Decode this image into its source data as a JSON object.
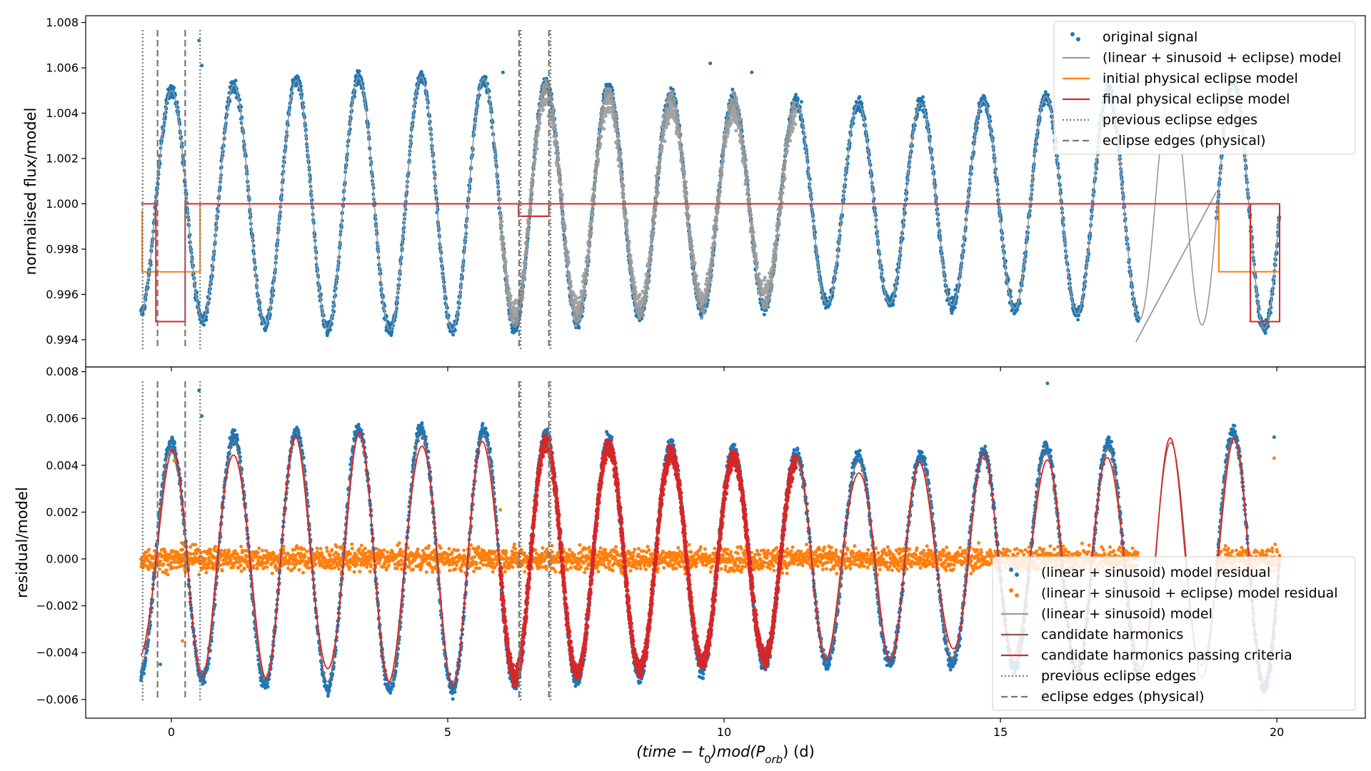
{
  "chart_data": [
    {
      "type": "line",
      "panel": "top",
      "title": "",
      "xlabel": "(time − t0)mod(Porb) (d)",
      "xlabel_parts": {
        "main": "(time − t",
        "sub0": "0",
        "mid": ")mod(P",
        "sub1": "orb",
        "end": ") (d)"
      },
      "ylabel": "normalised flux/model",
      "xlim": [
        -1.55,
        21.6
      ],
      "ylim": [
        0.9928,
        1.0083
      ],
      "xticks": [
        0,
        5,
        10,
        15,
        20
      ],
      "xtick_labels": [
        "0",
        "5",
        "10",
        "15",
        "20"
      ],
      "yticks": [
        0.994,
        0.996,
        0.998,
        1.0,
        1.002,
        1.004,
        1.006,
        1.008
      ],
      "ytick_labels": [
        "0.994",
        "0.996",
        "0.998",
        "1.000",
        "1.002",
        "1.004",
        "1.006",
        "1.008"
      ],
      "legend_position": "top-right",
      "series": [
        {
          "name": "original signal",
          "kind": "scatter",
          "color": "#1f77b4",
          "baseline": 1.0,
          "amplitude": 0.0052
        },
        {
          "name": "(linear + sinusoid + eclipse) model",
          "kind": "line",
          "color": "#999999",
          "x_range": [
            5.95,
            11.3
          ]
        },
        {
          "name": "initial physical eclipse model",
          "kind": "step",
          "color": "#ff7f0e",
          "x": [
            -0.53,
            -0.53,
            0.52,
            0.52,
            20.05,
            20.05
          ],
          "y": [
            0.9997,
            0.997,
            0.997,
            1.0,
            1.0,
            0.9975
          ]
        },
        {
          "name": "final physical eclipse model",
          "kind": "step",
          "color": "#d62728",
          "x": [
            -0.55,
            -0.28,
            -0.28,
            0.25,
            0.25,
            20.05
          ],
          "y": [
            1.0,
            1.0,
            0.9948,
            0.9948,
            1.0,
            1.0
          ]
        },
        {
          "name": "previous eclipse edges",
          "kind": "vline-dotted",
          "color": "#777777",
          "x": [
            -0.52,
            0.52,
            6.32,
            6.86
          ]
        },
        {
          "name": "eclipse edges (physical)",
          "kind": "vline-dashed",
          "color": "#777777",
          "x": [
            -0.25,
            0.25,
            6.29,
            6.83
          ]
        }
      ]
    },
    {
      "type": "line",
      "panel": "bottom",
      "title": "",
      "xlabel": "(time − t0)mod(Porb) (d)",
      "ylabel": "residual/model",
      "xlim": [
        -1.55,
        21.6
      ],
      "ylim": [
        -0.0068,
        0.0082
      ],
      "xticks": [
        0,
        5,
        10,
        15,
        20
      ],
      "xtick_labels": [
        "0",
        "5",
        "10",
        "15",
        "20"
      ],
      "yticks": [
        -0.006,
        -0.004,
        -0.002,
        0.0,
        0.002,
        0.004,
        0.006,
        0.008
      ],
      "ytick_labels": [
        "−0.006",
        "−0.004",
        "−0.002",
        "0.000",
        "0.002",
        "0.004",
        "0.006",
        "0.008"
      ],
      "legend_position": "lower-right",
      "series": [
        {
          "name": "(linear + sinusoid) model residual",
          "kind": "scatter",
          "color": "#1f77b4",
          "amplitude": 0.0052
        },
        {
          "name": "(linear + sinusoid + eclipse) model residual",
          "kind": "scatter",
          "color": "#ff7f0e",
          "amplitude": 0.0004
        },
        {
          "name": "(linear + sinusoid) model",
          "kind": "line",
          "color": "#999999"
        },
        {
          "name": "candidate harmonics",
          "kind": "line",
          "color": "#8c564b"
        },
        {
          "name": "candidate harmonics passing criteria",
          "kind": "line",
          "color": "#d62728",
          "x_range": [
            5.95,
            11.3
          ]
        },
        {
          "name": "previous eclipse edges",
          "kind": "vline-dotted",
          "color": "#777777",
          "x": [
            -0.52,
            0.52,
            6.32,
            6.86
          ]
        },
        {
          "name": "eclipse edges (physical)",
          "kind": "vline-dashed",
          "color": "#777777",
          "x": [
            -0.25,
            0.25,
            6.29,
            6.83
          ]
        }
      ]
    }
  ]
}
